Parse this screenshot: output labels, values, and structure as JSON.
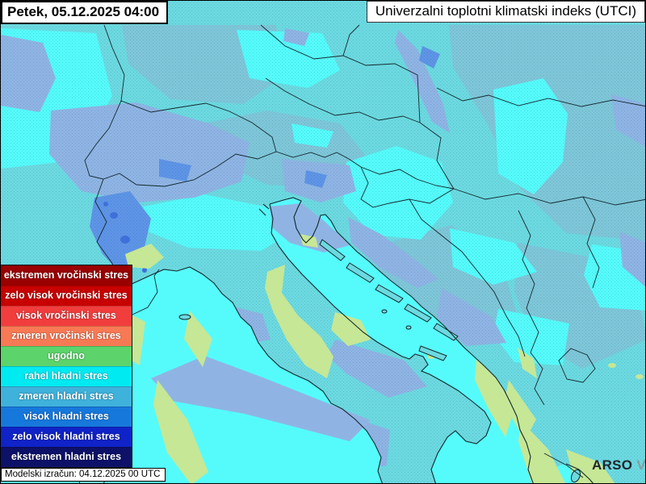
{
  "header": {
    "datetime_label": "Petek, 05.12.2025 04:00",
    "title": "Univerzalni toplotni klimatski indeks (UTCI)"
  },
  "legend": {
    "items": [
      {
        "label": "ekstremen vročinski stres",
        "color": "#9b0000"
      },
      {
        "label": "zelo visok vročinski stres",
        "color": "#c80000"
      },
      {
        "label": "visok vročinski stres",
        "color": "#f23d3d"
      },
      {
        "label": "zmeren vročinski stres",
        "color": "#f87a55"
      },
      {
        "label": "ugodno",
        "color": "#5cd46b"
      },
      {
        "label": "rahel hladni stres",
        "color": "#00eaf2"
      },
      {
        "label": "zmeren hladni stres",
        "color": "#3fb2dc"
      },
      {
        "label": "visok hladni stres",
        "color": "#1778dc"
      },
      {
        "label": "zelo visok hladni stres",
        "color": "#1023c8"
      },
      {
        "label": "ekstremen hladni stres",
        "color": "#0d1168"
      }
    ]
  },
  "footer": {
    "model_run_label": "Modelski izračun: 04.12.2025 00 UTC"
  },
  "branding": {
    "arso_label": "ARSO",
    "vreme_label": "VREME",
    "arso_color": "#20262c",
    "vreme_color": "#8b949c"
  },
  "map": {
    "colors": {
      "sea_mild": "#55fbfb",
      "land_base": "#6cd9e0",
      "land_shaded": "#7ec6d8",
      "moderate_cold": "#8fb4e4",
      "strong_cold": "#5e94e6",
      "very_strong_cold": "#4070dc",
      "comfortable_green": "#c6e795",
      "border_line": "#13282d"
    }
  }
}
